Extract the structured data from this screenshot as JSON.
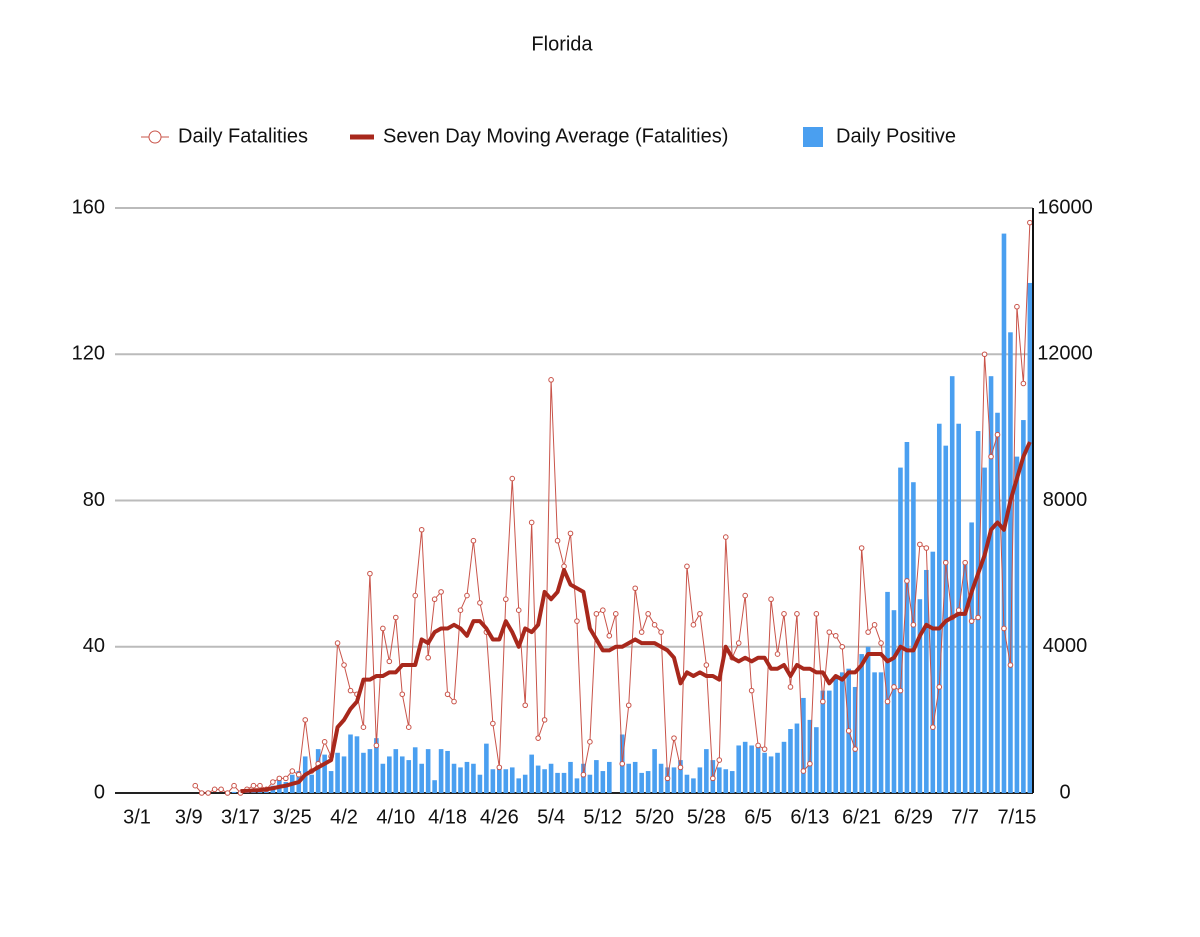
{
  "chart_data": {
    "type": "combo",
    "title": "Florida",
    "categories": [
      "3/1",
      null,
      null,
      null,
      null,
      null,
      null,
      null,
      "3/9",
      null,
      null,
      null,
      null,
      null,
      null,
      null,
      "3/17",
      null,
      null,
      null,
      null,
      null,
      null,
      null,
      "3/25",
      null,
      null,
      null,
      null,
      null,
      null,
      null,
      "4/2",
      null,
      null,
      null,
      null,
      null,
      null,
      null,
      "4/10",
      null,
      null,
      null,
      null,
      null,
      null,
      null,
      "4/18",
      null,
      null,
      null,
      null,
      null,
      null,
      null,
      "4/26",
      null,
      null,
      null,
      null,
      null,
      null,
      null,
      "5/4",
      null,
      null,
      null,
      null,
      null,
      null,
      null,
      "5/12",
      null,
      null,
      null,
      null,
      null,
      null,
      null,
      "5/20",
      null,
      null,
      null,
      null,
      null,
      null,
      null,
      "5/28",
      null,
      null,
      null,
      null,
      null,
      null,
      null,
      "6/5",
      null,
      null,
      null,
      null,
      null,
      null,
      null,
      "6/13",
      null,
      null,
      null,
      null,
      null,
      null,
      null,
      "6/21",
      null,
      null,
      null,
      null,
      null,
      null,
      null,
      "6/29",
      null,
      null,
      null,
      null,
      null,
      null,
      null,
      "7/7",
      null,
      null,
      null,
      null,
      null,
      null,
      null,
      "7/15",
      null,
      null
    ],
    "series": [
      {
        "name": "Daily Fatalities",
        "type": "line-dots",
        "color": "#c9544a",
        "axis": "y",
        "values": [
          null,
          null,
          null,
          null,
          null,
          null,
          null,
          null,
          null,
          2,
          0,
          0,
          1,
          1,
          0,
          2,
          0,
          1,
          2,
          2,
          1,
          3,
          4,
          4,
          6,
          5,
          20,
          6,
          8,
          14,
          10,
          41,
          35,
          28,
          27,
          18,
          60,
          13,
          45,
          36,
          48,
          27,
          18,
          54,
          72,
          37,
          53,
          55,
          27,
          25,
          50,
          54,
          69,
          52,
          44,
          19,
          7,
          53,
          86,
          50,
          24,
          74,
          15,
          20,
          113,
          69,
          62,
          71,
          47,
          5,
          14,
          49,
          50,
          43,
          49,
          8,
          24,
          56,
          44,
          49,
          46,
          44,
          4,
          15,
          7,
          62,
          46,
          49,
          35,
          4,
          9,
          70,
          37,
          41,
          54,
          28,
          13,
          12,
          53,
          38,
          49,
          29,
          49,
          6,
          8,
          49,
          25,
          44,
          43,
          40,
          17,
          12,
          67,
          44,
          46,
          41,
          25,
          29,
          28,
          58,
          46,
          68,
          67,
          18,
          29,
          63,
          48,
          50,
          63,
          47,
          48,
          120,
          92,
          98,
          45,
          35,
          133,
          112,
          156
        ]
      },
      {
        "name": "Seven Day Moving Average (Fatalities)",
        "type": "line",
        "color": "#a8281c",
        "axis": "y",
        "values": [
          null,
          null,
          null,
          null,
          null,
          null,
          null,
          null,
          null,
          null,
          null,
          null,
          null,
          null,
          null,
          null,
          0.5,
          0.6,
          0.7,
          0.8,
          1,
          1.3,
          1.7,
          2,
          2.5,
          3,
          5,
          6,
          7,
          8,
          9,
          18,
          20,
          23,
          25,
          31,
          31,
          32,
          32,
          33,
          33,
          35,
          35,
          35,
          42,
          41,
          44,
          45,
          45,
          46,
          45,
          43,
          47,
          47,
          45,
          42,
          42,
          47,
          44,
          40,
          45,
          44,
          46,
          55,
          53,
          55,
          61,
          57,
          56,
          55,
          45,
          42,
          39,
          39,
          40,
          40,
          41,
          42,
          41,
          41,
          41,
          40,
          39,
          37,
          30,
          33,
          32,
          33,
          32,
          32,
          31,
          40,
          37,
          36,
          37,
          36,
          37,
          37,
          34,
          34,
          35,
          32,
          35,
          34,
          34,
          33,
          33,
          30,
          32,
          31,
          33,
          33,
          35,
          38,
          38,
          38,
          36,
          37,
          40,
          39,
          39,
          43,
          46,
          45,
          45,
          47,
          48,
          49,
          49,
          55,
          60,
          65,
          72,
          74,
          72,
          80,
          86,
          92,
          96
        ]
      },
      {
        "name": "Daily Positive",
        "type": "bar",
        "color": "#4a9ff0",
        "axis": "y2",
        "values": [
          0,
          0,
          0,
          0,
          0,
          0,
          0,
          0,
          0,
          0,
          0,
          0,
          0,
          0,
          20,
          30,
          50,
          60,
          80,
          100,
          150,
          200,
          350,
          300,
          500,
          600,
          1000,
          500,
          1200,
          1050,
          600,
          1100,
          1000,
          1600,
          1550,
          1100,
          1200,
          1500,
          800,
          1000,
          1200,
          1000,
          900,
          1250,
          800,
          1200,
          350,
          1200,
          1150,
          800,
          700,
          850,
          800,
          500,
          1350,
          650,
          700,
          650,
          700,
          400,
          500,
          1050,
          750,
          650,
          800,
          550,
          550,
          850,
          400,
          800,
          500,
          900,
          600,
          850,
          0,
          1600,
          800,
          850,
          550,
          600,
          1200,
          800,
          700,
          700,
          900,
          500,
          400,
          700,
          1200,
          900,
          700,
          650,
          600,
          1300,
          1400,
          1300,
          1250,
          1100,
          1000,
          1100,
          1400,
          1750,
          1900,
          2600,
          2000,
          1800,
          2800,
          2800,
          3200,
          3300,
          3400,
          2900,
          3800,
          4000,
          3300,
          3300,
          5500,
          5000,
          8900,
          9600,
          8500,
          5300,
          6100,
          6600,
          10100,
          9500,
          11400,
          10100,
          6300,
          7400,
          9900,
          8900,
          11400,
          10400,
          15300,
          12600,
          9200,
          10200,
          13950
        ]
      }
    ],
    "ylim": [
      0,
      160
    ],
    "yticks": [
      0,
      40,
      80,
      120,
      160
    ],
    "y2lim": [
      0,
      16000
    ],
    "y2ticks": [
      0,
      4000,
      8000,
      12000,
      16000
    ],
    "grid": true,
    "legend": "top"
  }
}
